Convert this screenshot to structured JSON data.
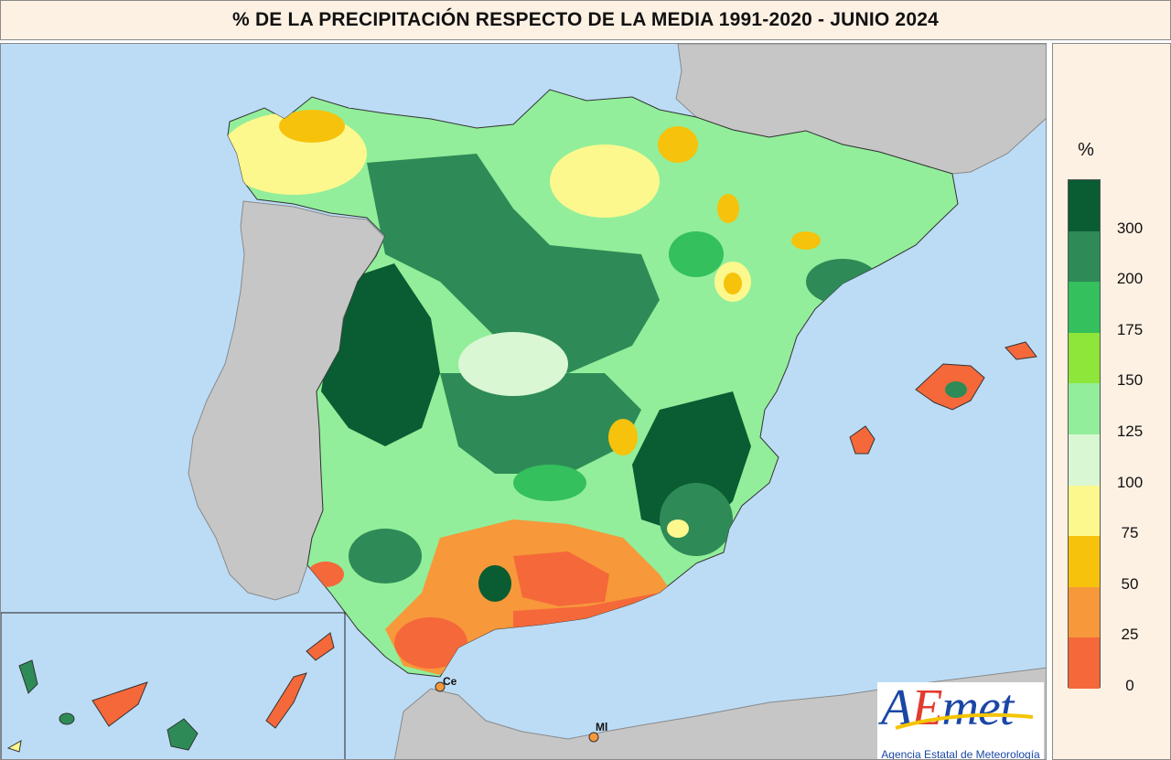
{
  "title": "% DE LA PRECIPITACIÓN RESPECTO DE LA MEDIA 1991-2020 - JUNIO 2024",
  "legend": {
    "unit": "%",
    "classes": [
      {
        "label": "300",
        "color": "#0a5c32"
      },
      {
        "label": "200",
        "color": "#2e8b57"
      },
      {
        "label": "175",
        "color": "#34c05c"
      },
      {
        "label": "150",
        "color": "#8ee63a"
      },
      {
        "label": "125",
        "color": "#92ee9a"
      },
      {
        "label": "100",
        "color": "#d9f7d3"
      },
      {
        "label": "75",
        "color": "#fcf88e"
      },
      {
        "label": "50",
        "color": "#f6c20b"
      },
      {
        "label": "25",
        "color": "#f7983a"
      },
      {
        "label": "0",
        "color": "#f5683a"
      }
    ]
  },
  "map": {
    "sea_color": "#bcdcf6",
    "foreign_land_color": "#c6c6c6",
    "cities": {
      "ceuta": "Ce",
      "melilla": "Ml"
    }
  },
  "logo": {
    "main_text": "AEmet",
    "subtitle": "Agencia Estatal de Meteorología",
    "colors": {
      "a": "#1a47a6",
      "e": "#e23b2f",
      "met": "#1a47a6",
      "swoosh": "#f4c400"
    }
  }
}
